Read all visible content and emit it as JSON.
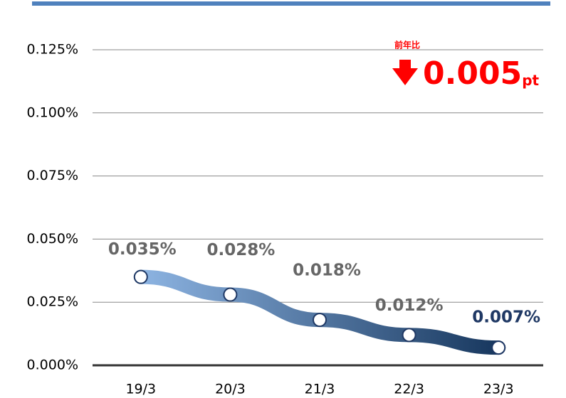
{
  "chart_data": {
    "type": "line",
    "categories": [
      "19/3",
      "20/3",
      "21/3",
      "22/3",
      "23/3"
    ],
    "series": [
      {
        "values": [
          0.035,
          0.028,
          0.018,
          0.012,
          0.007
        ],
        "value_labels": [
          "0.035%",
          "0.028%",
          "0.018%",
          "0.012%",
          "0.007%"
        ],
        "value_label_colors": [
          "#666666",
          "#666666",
          "#666666",
          "#666666",
          "#1f3864"
        ],
        "gradient": [
          "#8db4e2",
          "#17375e"
        ]
      }
    ],
    "ylim": [
      0,
      0.125
    ],
    "yticks": [
      {
        "value": 0,
        "label": "0.000%"
      },
      {
        "value": 0.025,
        "label": "0.025%"
      },
      {
        "value": 0.05,
        "label": "0.050%"
      },
      {
        "value": 0.075,
        "label": "0.075%"
      },
      {
        "value": 0.1,
        "label": "0.100%"
      },
      {
        "value": 0.125,
        "label": "0.125%"
      }
    ],
    "grid": true,
    "change": {
      "label": "前年比",
      "value": 0.005,
      "unit": "pt",
      "color": "#ff0000"
    }
  }
}
